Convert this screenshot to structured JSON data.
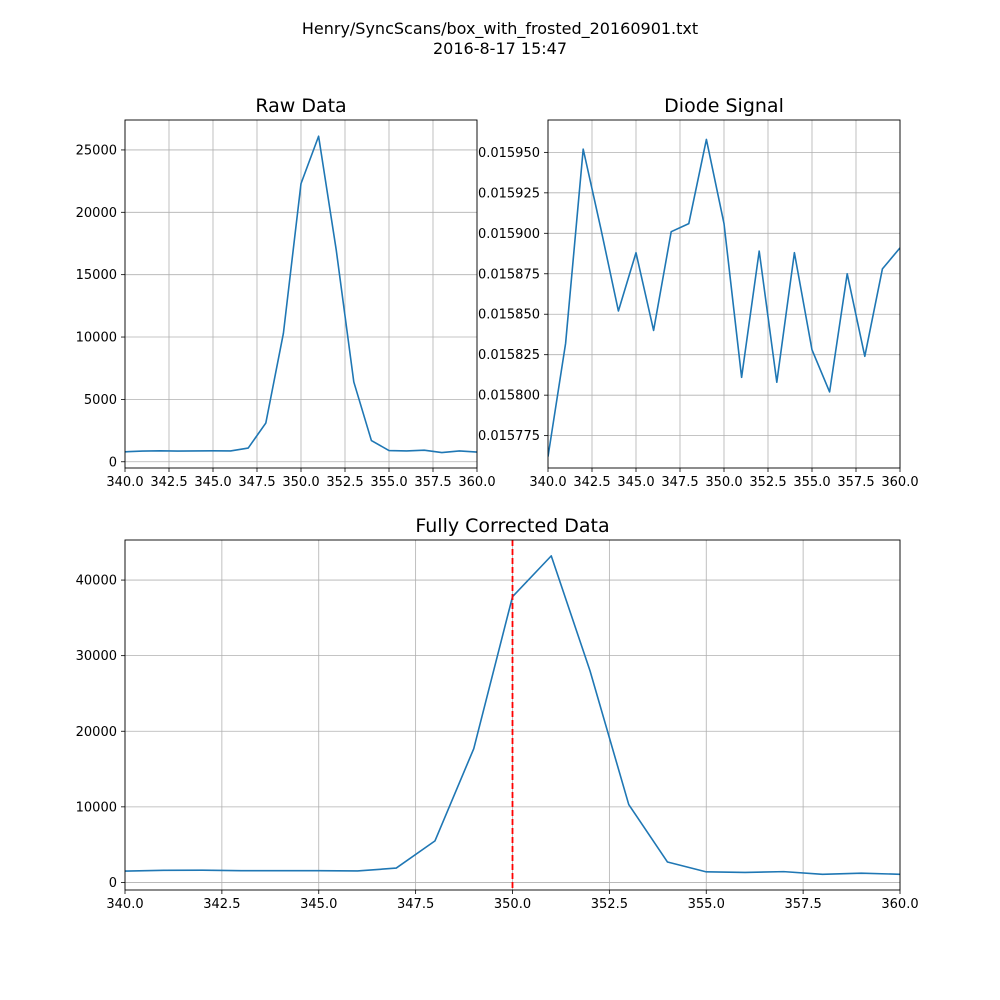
{
  "figure": {
    "title_line1": "Henry/SyncScans/box_with_frosted_20160901.txt",
    "title_line2": "2016-8-17     15:47"
  },
  "colors": {
    "line": "#1f77b4",
    "grid": "#b0b0b0",
    "marker": "#ff0000"
  },
  "chart_data": [
    {
      "type": "line",
      "title": "Raw Data",
      "xlim": [
        340,
        360
      ],
      "ylim": [
        -500,
        27400
      ],
      "xticks": [
        "340.0",
        "342.5",
        "345.0",
        "347.5",
        "350.0",
        "352.5",
        "355.0",
        "357.5",
        "360.0"
      ],
      "yticks": [
        "0",
        "5000",
        "10000",
        "15000",
        "20000",
        "25000"
      ],
      "grid": true,
      "x": [
        340,
        341,
        342,
        343,
        344,
        345,
        346,
        347,
        348,
        349,
        350,
        351,
        352,
        353,
        354,
        355,
        356,
        357,
        358,
        359,
        360
      ],
      "y": [
        800,
        860,
        880,
        860,
        870,
        880,
        870,
        1100,
        3100,
        10300,
        22300,
        26100,
        17000,
        6400,
        1700,
        900,
        870,
        930,
        740,
        870,
        780
      ]
    },
    {
      "type": "line",
      "title": "Diode Signal",
      "xlim": [
        340,
        360
      ],
      "ylim": [
        0.015755,
        0.01597
      ],
      "xticks": [
        "340.0",
        "342.5",
        "345.0",
        "347.5",
        "350.0",
        "352.5",
        "355.0",
        "357.5",
        "360.0"
      ],
      "yticks": [
        "0.015775",
        "0.015800",
        "0.015825",
        "0.015850",
        "0.015875",
        "0.015900",
        "0.015925",
        "0.015950"
      ],
      "grid": true,
      "x": [
        340,
        341,
        342,
        343,
        344,
        345,
        346,
        347,
        348,
        349,
        350,
        351,
        352,
        353,
        354,
        355,
        356,
        357,
        358,
        359,
        360
      ],
      "y": [
        0.015762,
        0.015832,
        0.015952,
        0.015903,
        0.015852,
        0.015888,
        0.01584,
        0.015901,
        0.015906,
        0.015958,
        0.015906,
        0.015811,
        0.015889,
        0.015808,
        0.015888,
        0.015828,
        0.015802,
        0.015875,
        0.015824,
        0.015878,
        0.015891
      ]
    },
    {
      "type": "line",
      "title": "Fully Corrected Data",
      "xlim": [
        340,
        360
      ],
      "ylim": [
        -1000,
        45300
      ],
      "xticks": [
        "340.0",
        "342.5",
        "345.0",
        "347.5",
        "350.0",
        "352.5",
        "355.0",
        "357.5",
        "360.0"
      ],
      "yticks": [
        "0",
        "10000",
        "20000",
        "30000",
        "40000"
      ],
      "grid": true,
      "x": [
        340,
        341,
        342,
        343,
        344,
        345,
        346,
        347,
        348,
        349,
        350,
        351,
        352,
        353,
        354,
        355,
        356,
        357,
        358,
        359,
        360
      ],
      "y": [
        1500,
        1600,
        1620,
        1560,
        1560,
        1560,
        1520,
        1900,
        5500,
        17700,
        37800,
        43200,
        28000,
        10300,
        2700,
        1400,
        1330,
        1430,
        1080,
        1220,
        1080
      ],
      "vline": {
        "x": 350,
        "style": "dashed"
      }
    }
  ]
}
